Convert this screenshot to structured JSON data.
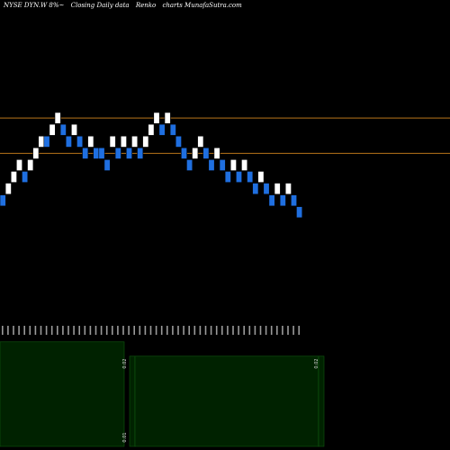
{
  "header": {
    "symbol": "NYSE DYN.W 8%~",
    "mode": "Closing Daily data",
    "chart_kind": "Renko",
    "site": "charts MunafaSutra.com"
  },
  "colors": {
    "background": "#000000",
    "up_brick": "#ffffff",
    "down_brick": "#1f6fe0",
    "resistance_line": "#b8741a",
    "volume_fill": "#002200",
    "volume_stroke": "#0f5a0f"
  },
  "chart_data": {
    "type": "renko",
    "brick_size": 1,
    "bricks": [
      {
        "dir": "down",
        "level": 0
      },
      {
        "dir": "up",
        "level": 1
      },
      {
        "dir": "up",
        "level": 2
      },
      {
        "dir": "up",
        "level": 3
      },
      {
        "dir": "down",
        "level": 2
      },
      {
        "dir": "up",
        "level": 3
      },
      {
        "dir": "up",
        "level": 4
      },
      {
        "dir": "up",
        "level": 5
      },
      {
        "dir": "down",
        "level": 5
      },
      {
        "dir": "up",
        "level": 6
      },
      {
        "dir": "up",
        "level": 7
      },
      {
        "dir": "down",
        "level": 6
      },
      {
        "dir": "down",
        "level": 5
      },
      {
        "dir": "up",
        "level": 6
      },
      {
        "dir": "down",
        "level": 5
      },
      {
        "dir": "down",
        "level": 4
      },
      {
        "dir": "up",
        "level": 5
      },
      {
        "dir": "down",
        "level": 4
      },
      {
        "dir": "down",
        "level": 4
      },
      {
        "dir": "down",
        "level": 3
      },
      {
        "dir": "up",
        "level": 5
      },
      {
        "dir": "down",
        "level": 4
      },
      {
        "dir": "up",
        "level": 5
      },
      {
        "dir": "down",
        "level": 4
      },
      {
        "dir": "up",
        "level": 5
      },
      {
        "dir": "down",
        "level": 4
      },
      {
        "dir": "up",
        "level": 5
      },
      {
        "dir": "up",
        "level": 6
      },
      {
        "dir": "up",
        "level": 7
      },
      {
        "dir": "down",
        "level": 6
      },
      {
        "dir": "up",
        "level": 7
      },
      {
        "dir": "down",
        "level": 6
      },
      {
        "dir": "down",
        "level": 5
      },
      {
        "dir": "down",
        "level": 4
      },
      {
        "dir": "down",
        "level": 3
      },
      {
        "dir": "up",
        "level": 4
      },
      {
        "dir": "up",
        "level": 5
      },
      {
        "dir": "down",
        "level": 4
      },
      {
        "dir": "down",
        "level": 3
      },
      {
        "dir": "up",
        "level": 4
      },
      {
        "dir": "down",
        "level": 3
      },
      {
        "dir": "down",
        "level": 2
      },
      {
        "dir": "up",
        "level": 3
      },
      {
        "dir": "down",
        "level": 2
      },
      {
        "dir": "up",
        "level": 3
      },
      {
        "dir": "down",
        "level": 2
      },
      {
        "dir": "down",
        "level": 1
      },
      {
        "dir": "up",
        "level": 2
      },
      {
        "dir": "down",
        "level": 1
      },
      {
        "dir": "down",
        "level": 0
      },
      {
        "dir": "up",
        "level": 1
      },
      {
        "dir": "down",
        "level": 0
      },
      {
        "dir": "up",
        "level": 1
      },
      {
        "dir": "down",
        "level": 0
      },
      {
        "dir": "down",
        "level": -1
      }
    ],
    "resistance_levels": [
      7.5,
      4.5
    ],
    "ylim": [
      -10,
      16
    ],
    "volume": {
      "values": [
        0.73,
        0.73,
        0.63,
        0.63,
        0.73
      ],
      "tick_labels": [
        "0.02",
        "0.02",
        "0.01"
      ]
    }
  }
}
